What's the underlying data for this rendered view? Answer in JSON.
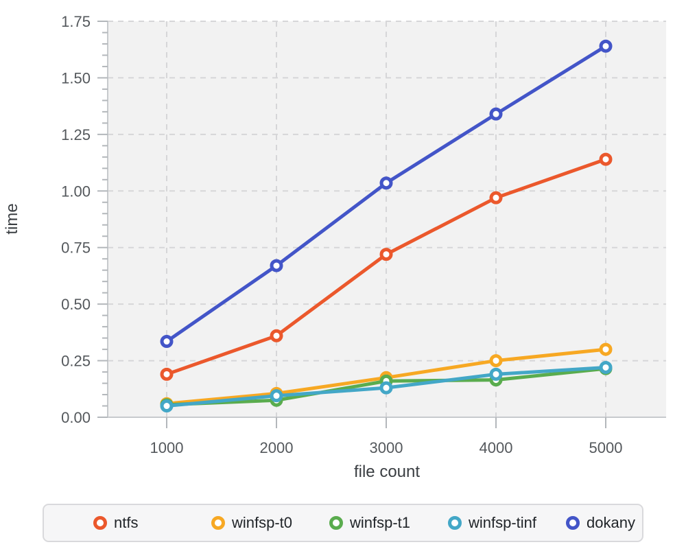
{
  "chart_data": {
    "type": "line",
    "title": "",
    "xlabel": "file count",
    "ylabel": "time",
    "x": [
      1000,
      2000,
      3000,
      4000,
      5000
    ],
    "xtick_labels": [
      "1000",
      "2000",
      "3000",
      "4000",
      "5000"
    ],
    "yticks": [
      0.0,
      0.25,
      0.5,
      0.75,
      1.0,
      1.25,
      1.5,
      1.75
    ],
    "ytick_labels": [
      "0.00",
      "0.25",
      "0.50",
      "0.75",
      "1.00",
      "1.25",
      "1.50",
      "1.75"
    ],
    "ylim": [
      0,
      1.75
    ],
    "xlim": [
      460,
      5545
    ],
    "minor_ytick_step": 0.05,
    "grid": "dashed",
    "legend_position": "bottom",
    "marker": "open-circle",
    "series": [
      {
        "name": "ntfs",
        "color": "#EB582C",
        "values": [
          0.19,
          0.36,
          0.72,
          0.97,
          1.14
        ]
      },
      {
        "name": "winfsp-t0",
        "color": "#F7A823",
        "values": [
          0.06,
          0.105,
          0.175,
          0.25,
          0.3
        ]
      },
      {
        "name": "winfsp-t1",
        "color": "#5AAC4E",
        "values": [
          0.055,
          0.075,
          0.16,
          0.165,
          0.215
        ]
      },
      {
        "name": "winfsp-tinf",
        "color": "#43A7C7",
        "values": [
          0.05,
          0.095,
          0.13,
          0.19,
          0.22
        ]
      },
      {
        "name": "dokany",
        "color": "#4355C8",
        "values": [
          0.335,
          0.67,
          1.035,
          1.34,
          1.64
        ]
      }
    ]
  },
  "colors": {
    "plot_bg": "#f2f2f2",
    "grid": "#d6d6d8",
    "axis_line": "#c7cacd",
    "tick": "#b3b7bb",
    "tick_label": "#54585c",
    "axis_title": "#3a3e42",
    "legend_bg": "#f6f6f7",
    "legend_border": "#d9d9dc",
    "legend_text": "#212529"
  }
}
